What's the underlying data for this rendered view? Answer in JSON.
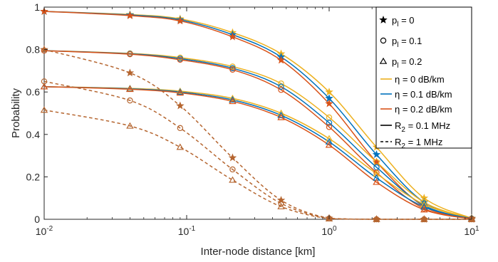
{
  "chart_data": {
    "type": "line",
    "xscale": "log",
    "xlim": [
      0.01,
      10
    ],
    "ylim": [
      0,
      1
    ],
    "xlabel": "Inter-node distance [km]",
    "ylabel": "Probability",
    "x_ticks": [
      {
        "value": 0.01,
        "base": "10",
        "exp": "-2"
      },
      {
        "value": 0.1,
        "base": "10",
        "exp": "-1"
      },
      {
        "value": 1,
        "base": "10",
        "exp": "0"
      },
      {
        "value": 10,
        "base": "10",
        "exp": "1"
      }
    ],
    "y_ticks": [
      {
        "value": 0,
        "label": "0"
      },
      {
        "value": 0.2,
        "label": "0.2"
      },
      {
        "value": 0.4,
        "label": "0.4"
      },
      {
        "value": 0.6,
        "label": "0.6"
      },
      {
        "value": 0.8,
        "label": "0.8"
      },
      {
        "value": 1,
        "label": "1"
      }
    ],
    "grid": false,
    "legend_position": "top-right",
    "colors": {
      "eta_0": "#EDB120",
      "eta_0.1": "#0072BD",
      "eta_0.2": "#D95319",
      "dashed": "#B5652F",
      "axis": "#262626",
      "black": "#000000"
    },
    "marker_x": [
      0.01,
      0.04,
      0.09,
      0.21,
      0.46,
      1.0,
      2.15,
      4.64,
      10.0
    ],
    "legend": [
      {
        "label": "p",
        "sub": "l",
        "rest": " =  0",
        "symbol": "star-marker"
      },
      {
        "label": "p",
        "sub": "l",
        "rest": " =  0.1",
        "symbol": "circle-marker"
      },
      {
        "label": "p",
        "sub": "l",
        "rest": " =  0.2",
        "symbol": "triangle-marker"
      },
      {
        "label": "η",
        "sub": "",
        "rest": " =  0 dB/km",
        "symbol": "line-eta-0"
      },
      {
        "label": "η",
        "sub": "",
        "rest": " =  0.1 dB/km",
        "symbol": "line-eta-0.1"
      },
      {
        "label": "η",
        "sub": "",
        "rest": " =  0.2 dB/km",
        "symbol": "line-eta-0.2"
      },
      {
        "label": "R",
        "sub": "2",
        "rest": " = 0.1 MHz",
        "symbol": "solid-line"
      },
      {
        "label": "R",
        "sub": "2",
        "rest": " = 1 MHz",
        "symbol": "dashed-line"
      }
    ],
    "series": [
      {
        "group": "solid",
        "p_l": "0",
        "eta": "0",
        "marker": "star",
        "values": [
          0.98,
          0.965,
          0.945,
          0.88,
          0.78,
          0.6,
          0.34,
          0.1,
          0.005
        ]
      },
      {
        "group": "solid",
        "p_l": "0",
        "eta": "0.1",
        "marker": "star",
        "values": [
          0.98,
          0.963,
          0.94,
          0.87,
          0.765,
          0.57,
          0.305,
          0.08,
          0.004
        ]
      },
      {
        "group": "solid",
        "p_l": "0",
        "eta": "0.2",
        "marker": "star",
        "values": [
          0.98,
          0.96,
          0.935,
          0.86,
          0.75,
          0.545,
          0.27,
          0.06,
          0.003
        ]
      },
      {
        "group": "solid",
        "p_l": "0.1",
        "eta": "0",
        "marker": "circle",
        "values": [
          0.795,
          0.782,
          0.762,
          0.72,
          0.64,
          0.48,
          0.27,
          0.08,
          0.004
        ]
      },
      {
        "group": "solid",
        "p_l": "0.1",
        "eta": "0.1",
        "marker": "circle",
        "values": [
          0.795,
          0.78,
          0.757,
          0.712,
          0.625,
          0.455,
          0.245,
          0.065,
          0.003
        ]
      },
      {
        "group": "solid",
        "p_l": "0.1",
        "eta": "0.2",
        "marker": "circle",
        "values": [
          0.795,
          0.778,
          0.752,
          0.705,
          0.61,
          0.435,
          0.22,
          0.05,
          0.002
        ]
      },
      {
        "group": "solid",
        "p_l": "0.2",
        "eta": "0",
        "marker": "triangle",
        "values": [
          0.625,
          0.617,
          0.604,
          0.57,
          0.5,
          0.38,
          0.215,
          0.07,
          0.003
        ]
      },
      {
        "group": "solid",
        "p_l": "0.2",
        "eta": "0.1",
        "marker": "triangle",
        "values": [
          0.625,
          0.615,
          0.6,
          0.563,
          0.49,
          0.365,
          0.195,
          0.058,
          0.003
        ]
      },
      {
        "group": "solid",
        "p_l": "0.2",
        "eta": "0.2",
        "marker": "triangle",
        "values": [
          0.625,
          0.613,
          0.596,
          0.556,
          0.48,
          0.35,
          0.175,
          0.045,
          0.002
        ]
      },
      {
        "group": "dashed",
        "p_l": "0",
        "eta": "0.2",
        "marker": "star",
        "values": [
          0.8,
          0.69,
          0.535,
          0.29,
          0.09,
          0.005,
          0.0,
          0.0,
          0.0
        ]
      },
      {
        "group": "dashed",
        "p_l": "0.1",
        "eta": "0.2",
        "marker": "circle",
        "values": [
          0.65,
          0.56,
          0.43,
          0.235,
          0.075,
          0.004,
          0.0,
          0.0,
          0.0
        ]
      },
      {
        "group": "dashed",
        "p_l": "0.2",
        "eta": "0.2",
        "marker": "triangle",
        "values": [
          0.515,
          0.44,
          0.34,
          0.185,
          0.06,
          0.003,
          0.0,
          0.0,
          0.0
        ]
      }
    ]
  }
}
